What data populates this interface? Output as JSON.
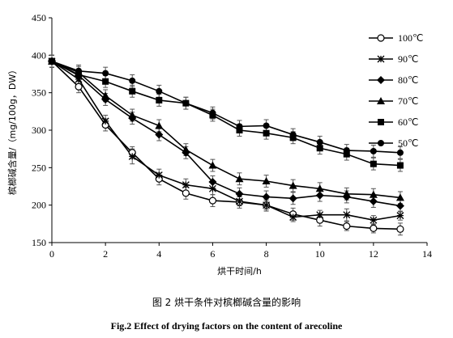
{
  "chart_data": {
    "type": "line",
    "xlabel": "烘干时间/h",
    "ylabel": "槟榔碱含量/（mg/100g，DW）",
    "xlim": [
      0,
      14
    ],
    "ylim": [
      150,
      450
    ],
    "xticks": [
      0,
      2,
      4,
      6,
      8,
      10,
      12,
      14
    ],
    "yticks": [
      150,
      200,
      250,
      300,
      350,
      400,
      450
    ],
    "grid": false,
    "legend_position": "top-right",
    "x": [
      0,
      1,
      2,
      3,
      4,
      5,
      6,
      7,
      8,
      9,
      10,
      11,
      12,
      13
    ],
    "series": [
      {
        "name": "100℃",
        "marker": "open-circle",
        "values": [
          392,
          358,
          307,
          270,
          235,
          216,
          206,
          204,
          200,
          188,
          180,
          172,
          169,
          168
        ],
        "errors": [
          8,
          8,
          8,
          8,
          8,
          8,
          8,
          8,
          8,
          8,
          8,
          6,
          6,
          8
        ]
      },
      {
        "name": "90℃",
        "marker": "star",
        "values": [
          392,
          368,
          312,
          265,
          240,
          227,
          222,
          205,
          200,
          184,
          187,
          187,
          180,
          186
        ],
        "errors": [
          8,
          8,
          8,
          10,
          8,
          8,
          8,
          6,
          6,
          6,
          6,
          8,
          6,
          6
        ]
      },
      {
        "name": "80℃",
        "marker": "diamond",
        "values": [
          392,
          373,
          341,
          316,
          294,
          270,
          231,
          215,
          211,
          209,
          213,
          211,
          205,
          199
        ],
        "errors": [
          8,
          8,
          8,
          8,
          8,
          8,
          8,
          8,
          8,
          8,
          8,
          8,
          8,
          8
        ]
      },
      {
        "name": "70℃",
        "marker": "triangle",
        "values": [
          392,
          377,
          346,
          320,
          306,
          274,
          253,
          235,
          232,
          226,
          222,
          215,
          214,
          210
        ],
        "errors": [
          8,
          8,
          8,
          8,
          8,
          8,
          8,
          8,
          8,
          8,
          8,
          8,
          8,
          8
        ]
      },
      {
        "name": "60℃",
        "marker": "square",
        "values": [
          392,
          374,
          365,
          352,
          340,
          336,
          320,
          300,
          296,
          290,
          276,
          268,
          255,
          253
        ],
        "errors": [
          8,
          8,
          8,
          8,
          8,
          8,
          8,
          8,
          8,
          8,
          8,
          8,
          8,
          8
        ]
      },
      {
        "name": "50℃",
        "marker": "filled-circle",
        "values": [
          392,
          379,
          376,
          366,
          352,
          336,
          323,
          305,
          306,
          294,
          284,
          273,
          272,
          270
        ],
        "errors": [
          8,
          8,
          8,
          8,
          8,
          8,
          8,
          8,
          8,
          8,
          8,
          8,
          8,
          8
        ]
      }
    ]
  },
  "caption_cn": "图 2  烘干条件对槟榔碱含量的影响",
  "caption_en": "Fig.2 Effect of drying factors on the content of arecoline"
}
